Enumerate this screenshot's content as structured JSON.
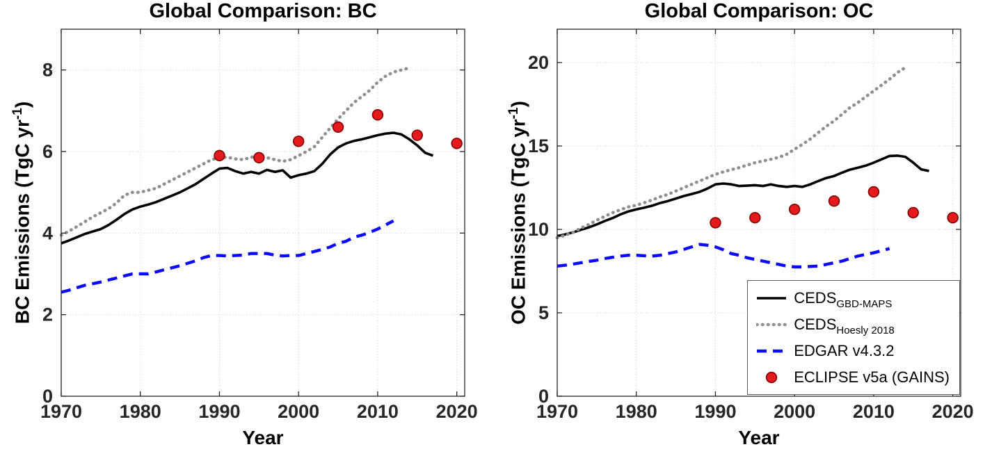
{
  "figure": {
    "bg": "#ffffff",
    "axis_color": "#262626",
    "grid_color": "#d9d9d9"
  },
  "legend": {
    "entries": [
      {
        "main": "CEDS",
        "sub": "GBD-MAPS",
        "style": "solid-black",
        "color": "#000000"
      },
      {
        "main": "CEDS",
        "sub": "Hoesly 2018",
        "style": "dotted-gray",
        "color": "#8f8f8f"
      },
      {
        "main": "EDGAR v4.3.2",
        "sub": "",
        "style": "dashed-blue",
        "color": "#0a0aff"
      },
      {
        "main": "ECLIPSE v5a (GAINS)",
        "sub": "",
        "style": "scatter-red",
        "color": "#e41a1c",
        "edge": "#7f0000"
      }
    ]
  },
  "chart_data": [
    {
      "type": "line",
      "title": "Global Comparison: BC",
      "xlabel": "Year",
      "ylabel": {
        "base": "BC Emissions (TgC yr",
        "sup": "-1",
        "end": ")"
      },
      "xlim": [
        1970,
        2021
      ],
      "ylim": [
        0,
        9
      ],
      "xticks": [
        1970,
        1980,
        1990,
        2000,
        2010,
        2020
      ],
      "yticks": [
        0,
        2,
        4,
        6,
        8
      ],
      "grid": true,
      "series": [
        {
          "name": "CEDS GBD-MAPS",
          "kind": "line",
          "style": "solid-black",
          "color": "#000000",
          "x_start": 1970,
          "x_step": 1,
          "values": [
            3.75,
            3.82,
            3.9,
            3.98,
            4.04,
            4.1,
            4.2,
            4.33,
            4.47,
            4.58,
            4.65,
            4.7,
            4.76,
            4.84,
            4.92,
            5.0,
            5.1,
            5.2,
            5.33,
            5.46,
            5.58,
            5.6,
            5.52,
            5.46,
            5.5,
            5.46,
            5.55,
            5.5,
            5.54,
            5.36,
            5.42,
            5.46,
            5.52,
            5.7,
            5.93,
            6.1,
            6.2,
            6.26,
            6.3,
            6.35,
            6.4,
            6.44,
            6.46,
            6.42,
            6.3,
            6.15,
            5.97,
            5.9
          ]
        },
        {
          "name": "CEDS Hoesly 2018",
          "kind": "line",
          "style": "dotted-gray",
          "color": "#8f8f8f",
          "x_start": 1970,
          "x_step": 1,
          "values": [
            3.95,
            4.05,
            4.16,
            4.28,
            4.4,
            4.5,
            4.6,
            4.74,
            4.93,
            5.0,
            5.0,
            5.05,
            5.1,
            5.2,
            5.3,
            5.4,
            5.5,
            5.6,
            5.7,
            5.8,
            5.85,
            5.86,
            5.82,
            5.8,
            5.86,
            5.9,
            5.85,
            5.8,
            5.76,
            5.8,
            5.9,
            6.0,
            6.12,
            6.35,
            6.58,
            6.8,
            7.0,
            7.2,
            7.35,
            7.5,
            7.7,
            7.85,
            7.95,
            8.0,
            8.05
          ]
        },
        {
          "name": "EDGAR v4.3.2",
          "kind": "line",
          "style": "dashed-blue",
          "color": "#0a0aff",
          "x_start": 1970,
          "x_step": 1,
          "values": [
            2.55,
            2.6,
            2.66,
            2.72,
            2.76,
            2.8,
            2.85,
            2.9,
            2.95,
            3.0,
            3.0,
            3.0,
            3.05,
            3.1,
            3.15,
            3.2,
            3.26,
            3.32,
            3.4,
            3.45,
            3.45,
            3.44,
            3.45,
            3.46,
            3.5,
            3.5,
            3.5,
            3.46,
            3.44,
            3.45,
            3.45,
            3.5,
            3.55,
            3.6,
            3.66,
            3.75,
            3.8,
            3.9,
            3.95,
            4.02,
            4.1,
            4.2,
            4.3
          ]
        },
        {
          "name": "ECLIPSE v5a (GAINS)",
          "kind": "scatter",
          "style": "scatter-red",
          "color": "#e41a1c",
          "edge": "#7f0000",
          "x": [
            1990,
            1995,
            2000,
            2005,
            2010,
            2015,
            2020
          ],
          "values": [
            5.9,
            5.85,
            6.25,
            6.6,
            6.9,
            6.4,
            6.2
          ]
        }
      ]
    },
    {
      "type": "line",
      "title": "Global Comparison: OC",
      "xlabel": "Year",
      "ylabel": {
        "base": "OC Emissions (TgC yr",
        "sup": "-1",
        "end": ")"
      },
      "xlim": [
        1970,
        2021
      ],
      "ylim": [
        0,
        22
      ],
      "xticks": [
        1970,
        1980,
        1990,
        2000,
        2010,
        2020
      ],
      "yticks": [
        0,
        5,
        10,
        15,
        20
      ],
      "grid": true,
      "series": [
        {
          "name": "CEDS GBD-MAPS",
          "kind": "line",
          "style": "solid-black",
          "color": "#000000",
          "x_start": 1970,
          "x_step": 1,
          "values": [
            9.6,
            9.7,
            9.82,
            9.98,
            10.12,
            10.3,
            10.5,
            10.68,
            10.9,
            11.08,
            11.2,
            11.3,
            11.42,
            11.58,
            11.7,
            11.85,
            12.0,
            12.12,
            12.25,
            12.45,
            12.7,
            12.75,
            12.7,
            12.6,
            12.62,
            12.65,
            12.6,
            12.7,
            12.6,
            12.55,
            12.6,
            12.55,
            12.7,
            12.9,
            13.08,
            13.2,
            13.4,
            13.58,
            13.7,
            13.82,
            14.0,
            14.2,
            14.4,
            14.42,
            14.35,
            14.0,
            13.6,
            13.5
          ]
        },
        {
          "name": "CEDS Hoesly 2018",
          "kind": "line",
          "style": "dotted-gray",
          "color": "#8f8f8f",
          "x_start": 1970,
          "x_step": 1,
          "values": [
            9.5,
            9.65,
            9.82,
            10.08,
            10.3,
            10.55,
            10.78,
            11.0,
            11.18,
            11.35,
            11.45,
            11.6,
            11.76,
            11.95,
            12.1,
            12.3,
            12.5,
            12.7,
            12.9,
            13.1,
            13.3,
            13.45,
            13.58,
            13.7,
            13.85,
            14.0,
            14.1,
            14.2,
            14.32,
            14.5,
            14.8,
            15.1,
            15.42,
            15.8,
            16.18,
            16.5,
            16.9,
            17.3,
            17.6,
            17.95,
            18.3,
            18.65,
            19.0,
            19.4,
            19.7
          ]
        },
        {
          "name": "EDGAR v4.3.2",
          "kind": "line",
          "style": "dashed-blue",
          "color": "#0a0aff",
          "x_start": 1970,
          "x_step": 1,
          "values": [
            7.8,
            7.85,
            7.92,
            8.0,
            8.08,
            8.15,
            8.25,
            8.33,
            8.4,
            8.45,
            8.45,
            8.42,
            8.4,
            8.45,
            8.55,
            8.65,
            8.8,
            8.95,
            9.1,
            9.05,
            8.95,
            8.78,
            8.55,
            8.45,
            8.3,
            8.2,
            8.1,
            8.0,
            7.9,
            7.8,
            7.75,
            7.75,
            7.78,
            7.8,
            7.9,
            8.0,
            8.1,
            8.25,
            8.4,
            8.5,
            8.6,
            8.72,
            8.85
          ]
        },
        {
          "name": "ECLIPSE v5a (GAINS)",
          "kind": "scatter",
          "style": "scatter-red",
          "color": "#e41a1c",
          "edge": "#7f0000",
          "x": [
            1990,
            1995,
            2000,
            2005,
            2010,
            2015,
            2020
          ],
          "values": [
            10.4,
            10.7,
            11.2,
            11.7,
            12.25,
            11.0,
            10.7
          ]
        }
      ]
    }
  ]
}
